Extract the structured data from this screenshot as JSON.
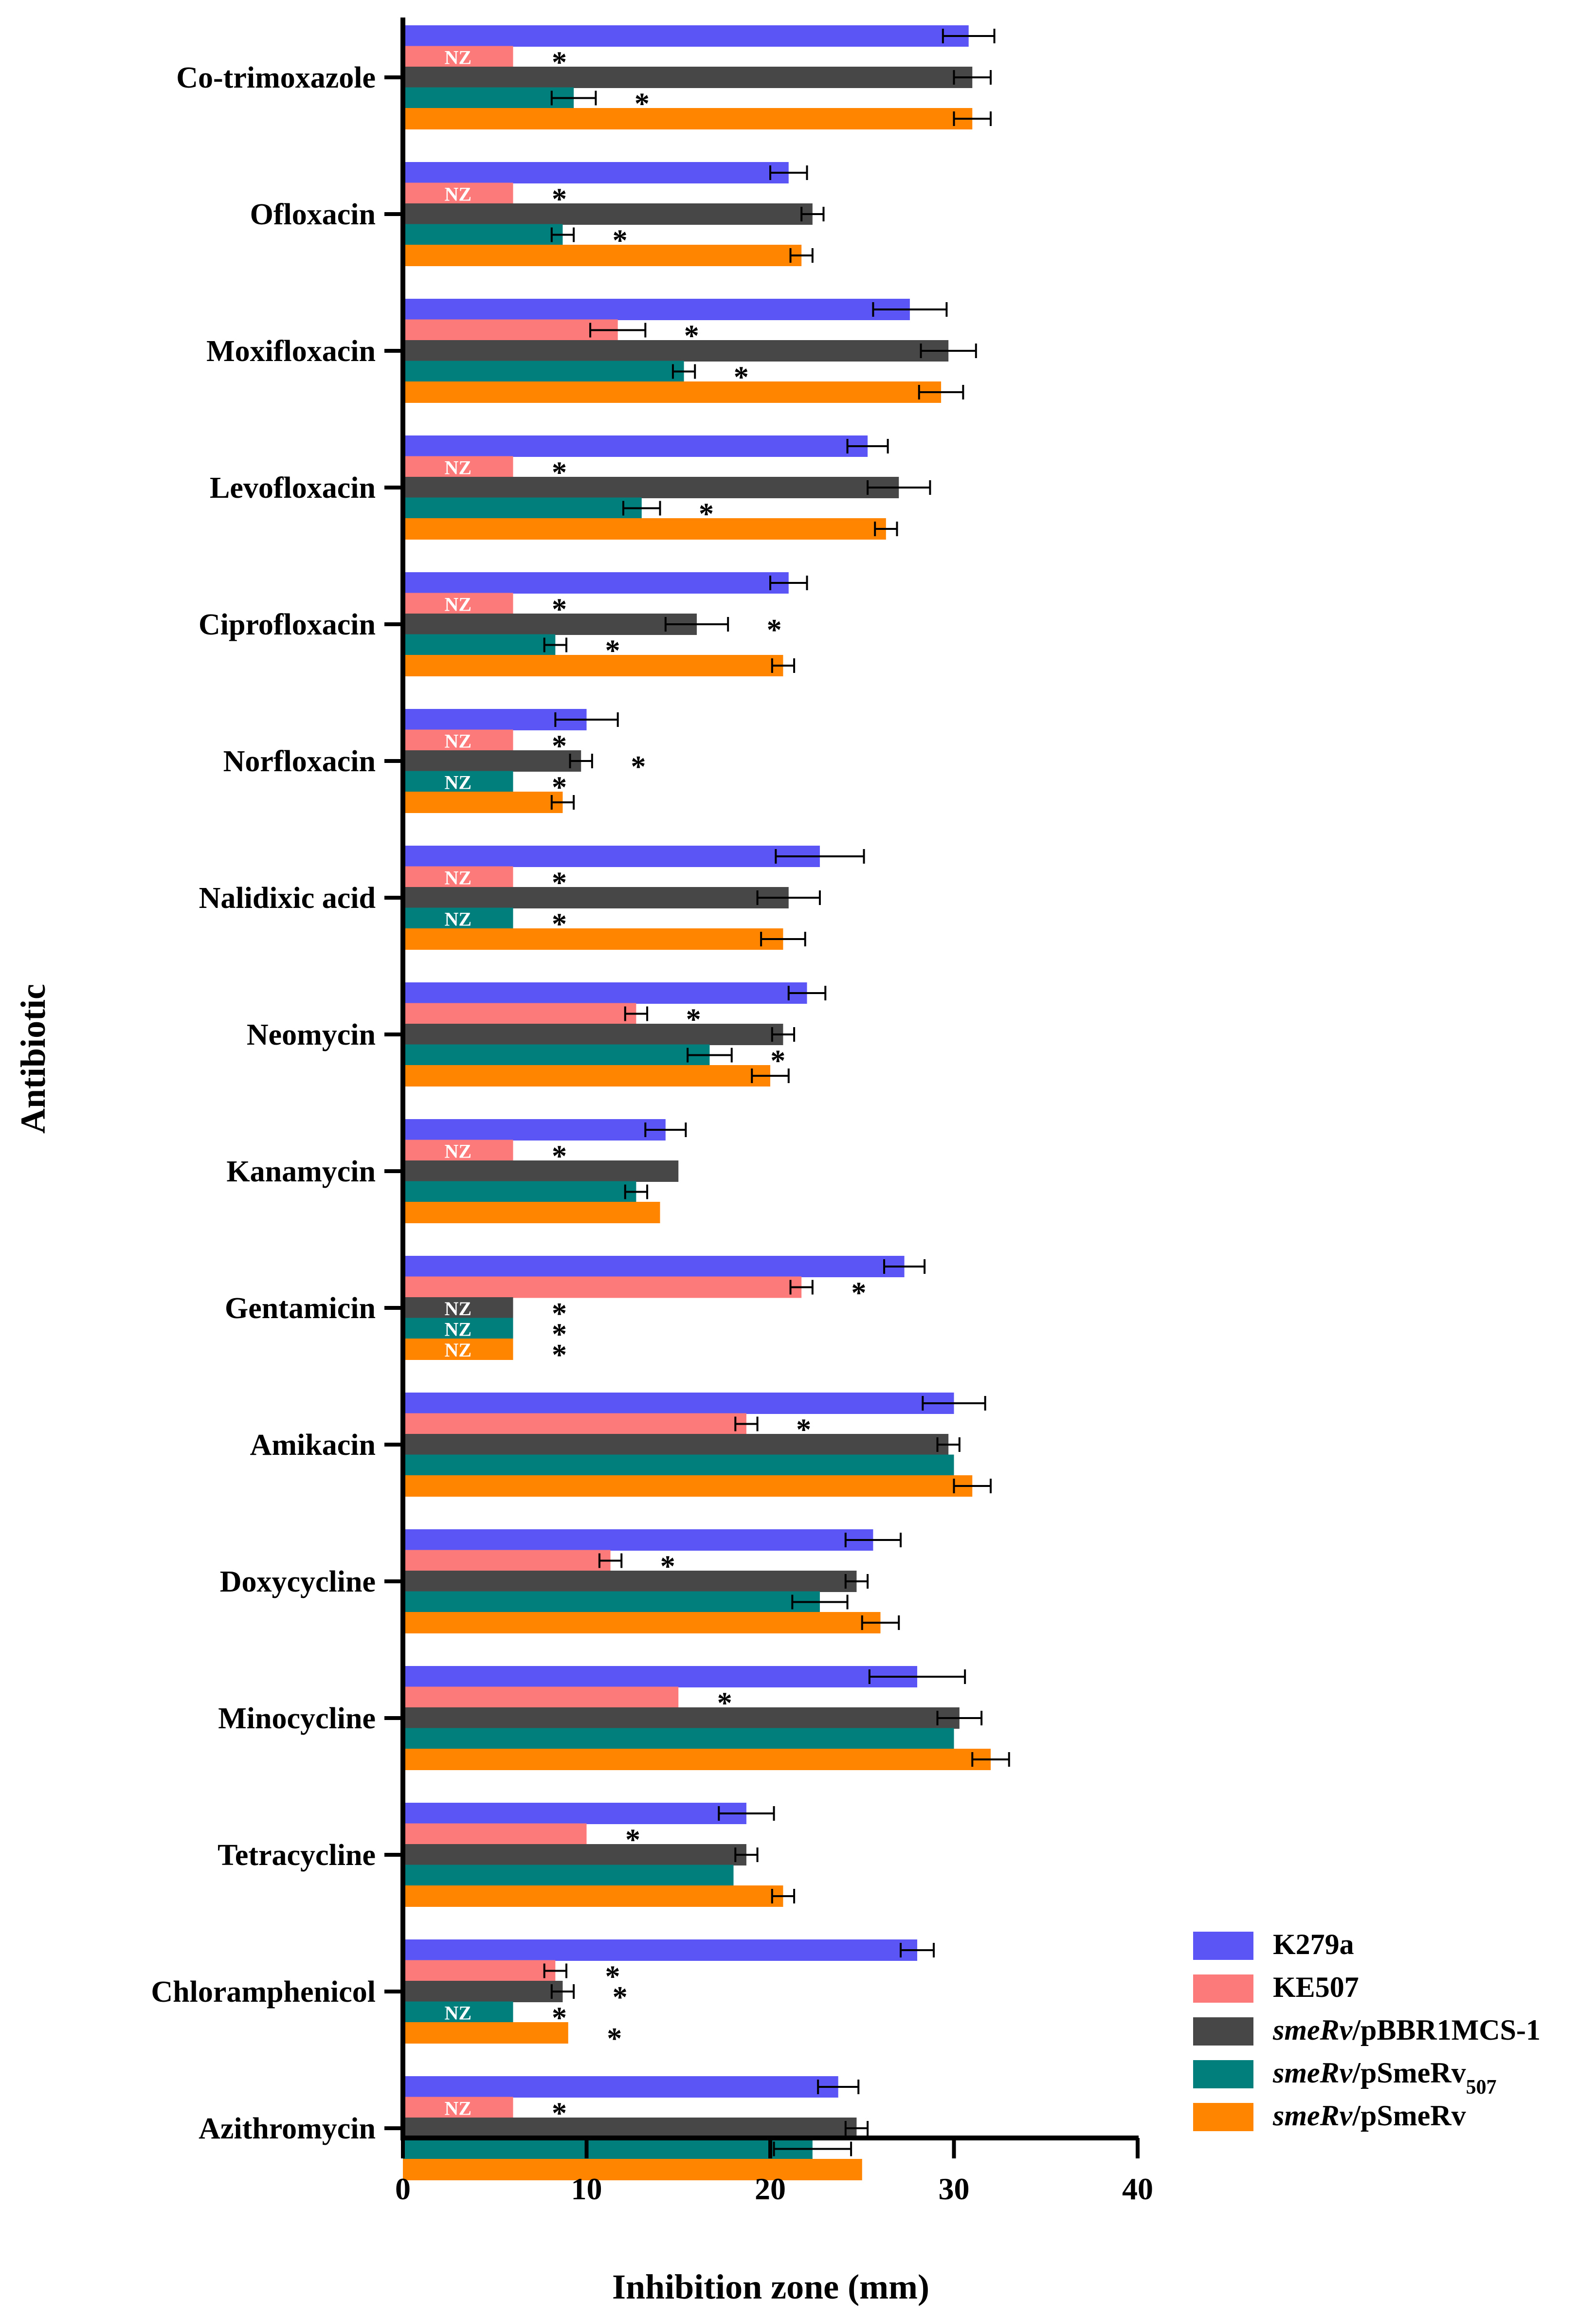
{
  "chart_data": {
    "type": "bar",
    "orientation": "horizontal",
    "xlabel": "Inhibition zone (mm)",
    "ylabel": "Antibiotic",
    "xlim": [
      0,
      40
    ],
    "xticks": [
      0,
      10,
      20,
      30,
      40
    ],
    "nz_label": "NZ",
    "star_label": "*",
    "categories": [
      "Co-trimoxazole",
      "Ofloxacin",
      "Moxifloxacin",
      "Levofloxacin",
      "Ciprofloxacin",
      "Norfloxacin",
      "Nalidixic acid",
      "Neomycin",
      "Kanamycin",
      "Gentamicin",
      "Amikacin",
      "Doxycycline",
      "Minocycline",
      "Tetracycline",
      "Chloramphenicol",
      "Azithromycin"
    ],
    "series": [
      {
        "name": "K279a",
        "color": "#5b55f5",
        "legend": [
          {
            "t": "K279a",
            "style": "normal"
          }
        ],
        "values": [
          30.8,
          21,
          27.6,
          25.3,
          21,
          10,
          22.7,
          22,
          14.3,
          27.3,
          30,
          25.6,
          28,
          18.7,
          28,
          23.7
        ],
        "errors": [
          1.4,
          1,
          2,
          1.1,
          1,
          1.7,
          2.4,
          1,
          1.1,
          1.1,
          1.7,
          1.5,
          2.6,
          1.5,
          0.9,
          1.1
        ],
        "nz": [
          false,
          false,
          false,
          false,
          false,
          false,
          false,
          false,
          false,
          false,
          false,
          false,
          false,
          false,
          false,
          false
        ],
        "sig": [
          false,
          false,
          false,
          false,
          false,
          false,
          false,
          false,
          false,
          false,
          false,
          false,
          false,
          false,
          false,
          false
        ]
      },
      {
        "name": "KE507",
        "color": "#fc7a7a",
        "legend": [
          {
            "t": "KE507",
            "style": "normal"
          }
        ],
        "values": [
          6,
          6,
          11.7,
          6,
          6,
          6,
          6,
          12.7,
          6,
          21.7,
          18.7,
          11.3,
          15,
          10,
          8.3,
          6
        ],
        "errors": [
          0,
          0,
          1.5,
          0,
          0,
          0,
          0,
          0.6,
          0,
          0.6,
          0.6,
          0.6,
          0,
          0,
          0.6,
          0
        ],
        "nz": [
          true,
          true,
          false,
          true,
          true,
          true,
          true,
          false,
          true,
          false,
          false,
          false,
          false,
          false,
          false,
          true
        ],
        "sig": [
          true,
          true,
          true,
          true,
          true,
          true,
          true,
          true,
          true,
          true,
          true,
          true,
          true,
          true,
          true,
          true
        ]
      },
      {
        "name": "smeRv/pBBR1MCS-1",
        "color": "#474747",
        "legend": [
          {
            "t": "smeRv",
            "style": "italic"
          },
          {
            "t": "/pBBR1MCS-1",
            "style": "normal"
          }
        ],
        "values": [
          31,
          22.3,
          29.7,
          27,
          16,
          9.7,
          21,
          20.7,
          15,
          6,
          29.7,
          24.7,
          30.3,
          18.7,
          8.7,
          24.7
        ],
        "errors": [
          1,
          0.6,
          1.5,
          1.7,
          1.7,
          0.6,
          1.7,
          0.6,
          0,
          0,
          0.6,
          0.6,
          1.2,
          0.6,
          0.6,
          0.6
        ],
        "nz": [
          false,
          false,
          false,
          false,
          false,
          false,
          false,
          false,
          false,
          true,
          false,
          false,
          false,
          false,
          false,
          false
        ],
        "sig": [
          false,
          false,
          false,
          false,
          true,
          true,
          false,
          false,
          false,
          true,
          false,
          false,
          false,
          false,
          true,
          false
        ]
      },
      {
        "name": "smeRv/pSmeRv507",
        "color": "#007f7c",
        "legend": [
          {
            "t": "smeRv",
            "style": "italic"
          },
          {
            "t": "/pSmeRv",
            "style": "normal"
          },
          {
            "t": "507",
            "style": "sub"
          }
        ],
        "values": [
          9.3,
          8.7,
          15.3,
          13,
          8.3,
          6,
          6,
          16.7,
          12.7,
          6,
          30,
          22.7,
          30,
          18,
          6,
          22.3
        ],
        "errors": [
          1.2,
          0.6,
          0.6,
          1,
          0.6,
          0,
          0,
          1.2,
          0.6,
          0,
          0,
          1.5,
          0,
          0,
          0,
          2.1
        ],
        "nz": [
          false,
          false,
          false,
          false,
          false,
          true,
          true,
          false,
          false,
          true,
          false,
          false,
          false,
          false,
          true,
          false
        ],
        "sig": [
          true,
          true,
          true,
          true,
          true,
          true,
          true,
          true,
          false,
          true,
          false,
          false,
          false,
          false,
          true,
          false
        ]
      },
      {
        "name": "smeRv/pSmeRv",
        "color": "#ff8400",
        "legend": [
          {
            "t": "smeRv",
            "style": "italic"
          },
          {
            "t": "/pSmeRv",
            "style": "normal"
          }
        ],
        "values": [
          31,
          21.7,
          29.3,
          26.3,
          20.7,
          8.7,
          20.7,
          20,
          14,
          6,
          31,
          26,
          32,
          20.7,
          9,
          25
        ],
        "errors": [
          1,
          0.6,
          1.2,
          0.6,
          0.6,
          0.6,
          1.2,
          1,
          0,
          0,
          1,
          1,
          1,
          0.6,
          0,
          0
        ],
        "nz": [
          false,
          false,
          false,
          false,
          false,
          false,
          false,
          false,
          false,
          true,
          false,
          false,
          false,
          false,
          false,
          false
        ],
        "sig": [
          false,
          false,
          false,
          false,
          false,
          false,
          false,
          false,
          false,
          true,
          false,
          false,
          false,
          false,
          true,
          false
        ]
      }
    ]
  }
}
